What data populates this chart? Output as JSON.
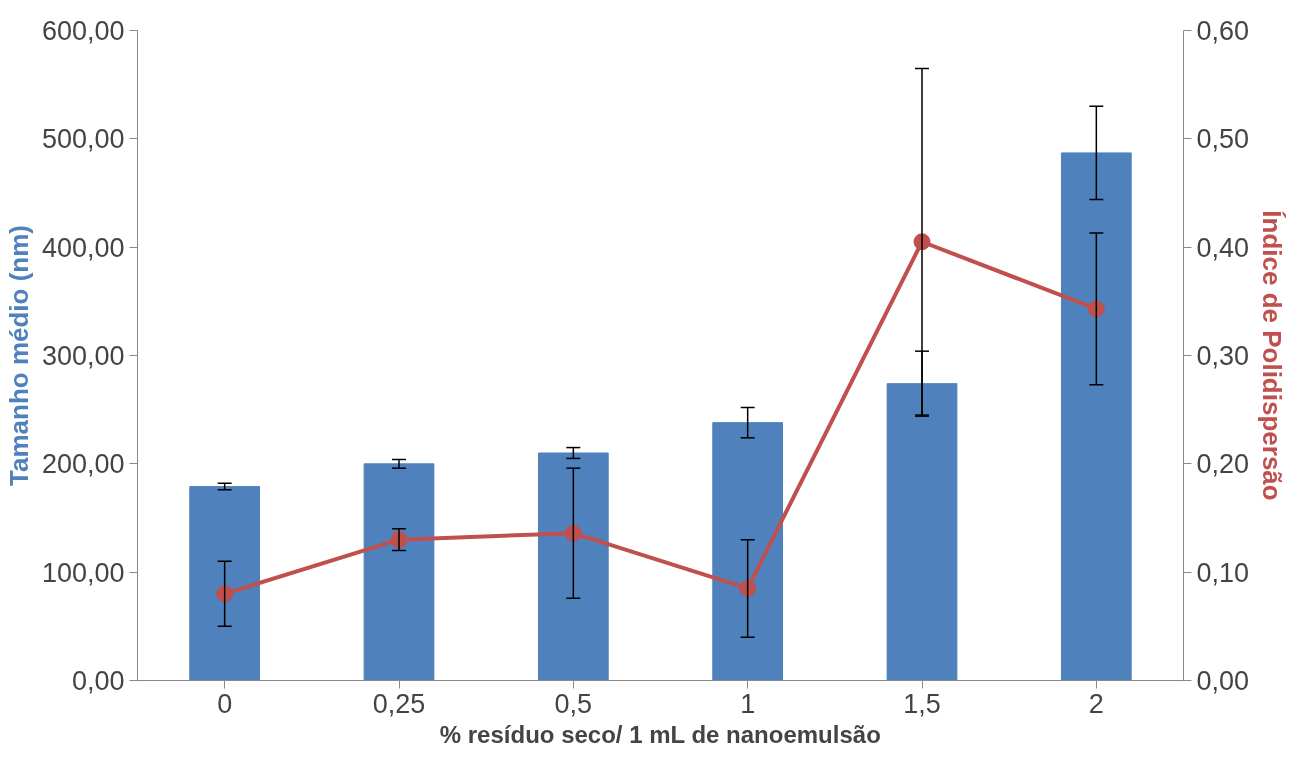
{
  "chart_data": {
    "type": "bar",
    "xlabel": "% resíduo seco/ 1 mL de nanoemulsão",
    "ylabel": "Tamanho médio (nm)",
    "y2label": "Índice de Polidispersão",
    "categories": [
      "0",
      "0,25",
      "0,5",
      "1",
      "1,5",
      "2"
    ],
    "series": [
      {
        "color": "#4f81bd",
        "values": [
          179,
          200,
          210,
          238,
          274,
          487
        ],
        "errors": [
          3,
          4,
          5,
          14,
          30,
          43
        ]
      },
      {
        "type": "line",
        "axis": "y2",
        "color": "#c0504d",
        "marker": "circle",
        "line_style": "solid",
        "values": [
          0.08,
          0.13,
          0.136,
          0.085,
          0.405,
          0.343
        ],
        "errors": [
          0.03,
          0.01,
          0.06,
          0.045,
          0.16,
          0.07
        ]
      }
    ],
    "ylim": [
      0,
      600
    ],
    "yticks": [
      {
        "value": 0,
        "label": "0,00"
      },
      {
        "value": 100,
        "label": "100,00"
      },
      {
        "value": 200,
        "label": "200,00"
      },
      {
        "value": 300,
        "label": "300,00"
      },
      {
        "value": 400,
        "label": "400,00"
      },
      {
        "value": 500,
        "label": "500,00"
      },
      {
        "value": 600,
        "label": "600,00"
      }
    ],
    "y2lim": [
      0,
      0.6
    ],
    "y2ticks": [
      {
        "value": 0,
        "label": "0,00"
      },
      {
        "value": 0.1,
        "label": "0,10"
      },
      {
        "value": 0.2,
        "label": "0,20"
      },
      {
        "value": 0.3,
        "label": "0,30"
      },
      {
        "value": 0.4,
        "label": "0,40"
      },
      {
        "value": 0.5,
        "label": "0,50"
      },
      {
        "value": 0.6,
        "label": "0,60"
      }
    ],
    "grid": false
  }
}
